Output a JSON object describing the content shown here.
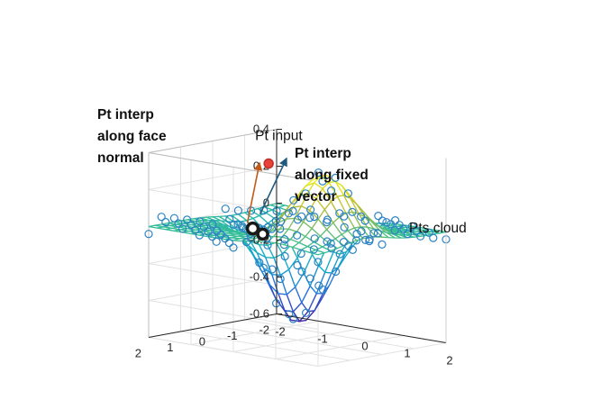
{
  "chart_data": {
    "type": "surface3d",
    "xlim": [
      -2,
      2
    ],
    "ylim": [
      -2,
      2
    ],
    "zlim": [
      -0.6,
      0.4
    ],
    "x_ticks": [
      -2,
      -1,
      0,
      1,
      2
    ],
    "y_ticks": [
      -2,
      -1,
      0,
      1,
      2
    ],
    "z_ticks": [
      -0.6,
      -0.4,
      -0.2,
      0,
      0.2,
      0.4
    ],
    "x_tick_labels": [
      "-2",
      "-1",
      "0",
      "1",
      "2"
    ],
    "y_tick_labels": [
      "-2",
      "-1",
      "0",
      "1",
      "2"
    ],
    "z_tick_labels": [
      "-0.6",
      "-0.4",
      "-0.2",
      "0",
      "0.2",
      "0.4"
    ],
    "grid": true,
    "colormap": "parula",
    "surface_grid": 21,
    "points": {
      "pt_input": {
        "x": -0.3,
        "y": 0.5,
        "z": 0.36
      },
      "pt_normal": {
        "x": -0.6,
        "y": 0.6,
        "z": 0.0
      },
      "pt_fixed": {
        "x": -0.1,
        "y": 0.95,
        "z": 0.0
      }
    },
    "annotations": {
      "pt_input": "Pt input",
      "pt_normal": [
        "Pt interp",
        "along face",
        "normal"
      ],
      "pt_fixed": [
        "Pt interp",
        "along fixed",
        "vector"
      ],
      "cloud": "Pts cloud"
    },
    "colors": {
      "pt_input": "#e8413a",
      "pt_interp": "#1a1a1a",
      "normal_arrow": "#c05a18",
      "fixed_arrow": "#1f5b80",
      "cloud_marker": "#2b83c4"
    }
  }
}
